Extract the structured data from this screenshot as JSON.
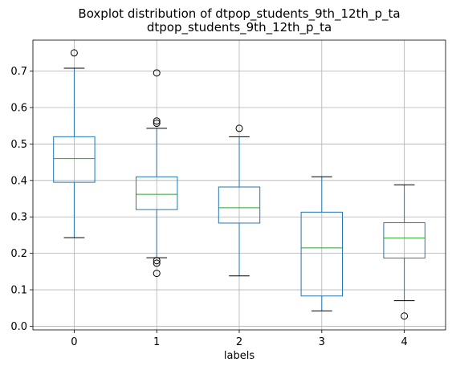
{
  "chart_data": {
    "type": "boxplot",
    "title": "Boxplot distribution of dtpop_students_9th_12th_p_ta",
    "subtitle": "dtpop_students_9th_12th_p_ta",
    "xlabel": "labels",
    "ylabel": "",
    "ylim": [
      -0.01,
      0.785
    ],
    "yticks": [
      0.0,
      0.1,
      0.2,
      0.3,
      0.4,
      0.5,
      0.6,
      0.7
    ],
    "ytick_labels": [
      "0.0",
      "0.1",
      "0.2",
      "0.3",
      "0.4",
      "0.5",
      "0.6",
      "0.7"
    ],
    "grid": true,
    "categories": [
      "0",
      "1",
      "2",
      "3",
      "4"
    ],
    "boxes": [
      {
        "label": "0",
        "whisker_low": 0.243,
        "q1": 0.395,
        "median": 0.46,
        "q3": 0.52,
        "whisker_high": 0.708,
        "outliers": [
          0.75
        ]
      },
      {
        "label": "1",
        "whisker_low": 0.188,
        "q1": 0.32,
        "median": 0.362,
        "q3": 0.41,
        "whisker_high": 0.543,
        "outliers": [
          0.695,
          0.563,
          0.557,
          0.18,
          0.173,
          0.145
        ]
      },
      {
        "label": "2",
        "whisker_low": 0.138,
        "q1": 0.283,
        "median": 0.325,
        "q3": 0.382,
        "whisker_high": 0.52,
        "outliers": [
          0.543
        ]
      },
      {
        "label": "3",
        "whisker_low": 0.042,
        "q1": 0.083,
        "median": 0.215,
        "q3": 0.313,
        "whisker_high": 0.41,
        "outliers": []
      },
      {
        "label": "4",
        "whisker_low": 0.07,
        "q1": 0.187,
        "median": 0.242,
        "q3": 0.284,
        "whisker_high": 0.388,
        "outliers": [
          0.028
        ]
      }
    ],
    "colors": {
      "box": "#1f77b4",
      "median": "#2ca02c",
      "whisker_cap": "#000000",
      "outlier": "#000000",
      "grid": "#b0b0b0"
    }
  }
}
